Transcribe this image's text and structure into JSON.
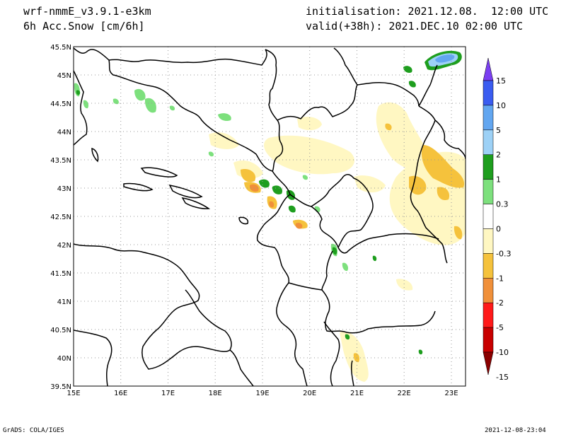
{
  "header": {
    "model": "wrf-nmmE_v3.9.1-e3km",
    "field": "6h Acc.Snow [cm/6h]",
    "init": "initialisation: 2021.12.08.  12:00 UTC",
    "valid": "valid(+38h): 2021.DEC.10 02:00 UTC"
  },
  "map": {
    "lat_labels": [
      "45.5N",
      "45N",
      "44.5N",
      "44N",
      "43.5N",
      "43N",
      "42.5N",
      "42N",
      "41.5N",
      "41N",
      "40.5N",
      "40N",
      "39.5N"
    ],
    "lon_labels": [
      "15E",
      "16E",
      "17E",
      "18E",
      "19E",
      "20E",
      "21E",
      "22E",
      "23E"
    ],
    "lon_range": [
      15,
      23.3
    ],
    "lat_range": [
      39.5,
      45.5
    ],
    "grid": "dotted"
  },
  "colorbar": {
    "labels": [
      "15",
      "10",
      "5",
      "2",
      "1",
      "0.3",
      "0",
      "-0.3",
      "-1",
      "-2",
      "-5",
      "-10",
      "-15"
    ],
    "colors": [
      "#7b3ff2",
      "#3a5cf0",
      "#62a6f0",
      "#9dd1f6",
      "#1e9e1e",
      "#7de07d",
      "#ffffff",
      "#fff7c2",
      "#f5c23c",
      "#f0903a",
      "#ff1a1a",
      "#c80000",
      "#8a0000"
    ]
  },
  "footer": {
    "left": "GrADS: COLA/IGES",
    "right": "2021-12-08-23:04"
  }
}
